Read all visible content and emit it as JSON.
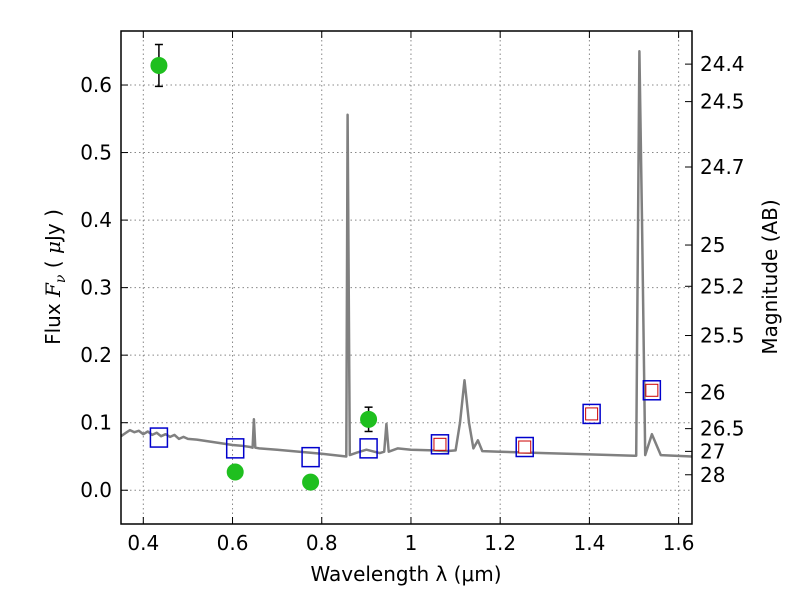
{
  "chart_data": {
    "type": "scatter",
    "xlabel": "Wavelength  λ (μm)",
    "ylabel": "Flux  F_ν  ( μJy )",
    "y2label": "Magnitude (AB)",
    "xlim": [
      0.35,
      1.63
    ],
    "ylim": [
      -0.05,
      0.68
    ],
    "grid": true,
    "x_ticks": [
      0.4,
      0.6,
      0.8,
      1.0,
      1.2,
      1.4,
      1.6
    ],
    "x_tick_labels": [
      "0.4",
      "0.6",
      "0.8",
      "1",
      "1.2",
      "1.4",
      "1.6"
    ],
    "y_ticks": [
      0.0,
      0.1,
      0.2,
      0.3,
      0.4,
      0.5,
      0.6
    ],
    "y_tick_labels": [
      "0.0",
      "0.1",
      "0.2",
      "0.3",
      "0.4",
      "0.5",
      "0.6"
    ],
    "mag_ticks": [
      "24.4",
      "24.5",
      "24.7",
      "25",
      "25.2",
      "25.5",
      "26",
      "26.5",
      "27",
      "28"
    ],
    "colors": {
      "model": "#808080",
      "observed": "#1fbf1f",
      "model_phot": "#0000cc",
      "filter_box": "#cc0000",
      "errorbar": "#000000",
      "grid": "#888888"
    },
    "series": [
      {
        "kind": "line",
        "points": [
          [
            0.35,
            0.08
          ],
          [
            0.37,
            0.089
          ],
          [
            0.38,
            0.086
          ],
          [
            0.39,
            0.088
          ],
          [
            0.4,
            0.083
          ],
          [
            0.41,
            0.087
          ],
          [
            0.42,
            0.082
          ],
          [
            0.43,
            0.085
          ],
          [
            0.44,
            0.08
          ],
          [
            0.45,
            0.083
          ],
          [
            0.46,
            0.079
          ],
          [
            0.47,
            0.082
          ],
          [
            0.48,
            0.076
          ],
          [
            0.49,
            0.079
          ],
          [
            0.5,
            0.076
          ],
          [
            0.52,
            0.075
          ],
          [
            0.55,
            0.072
          ],
          [
            0.58,
            0.069
          ],
          [
            0.6,
            0.067
          ],
          [
            0.62,
            0.066
          ],
          [
            0.64,
            0.064
          ],
          [
            0.645,
            0.063
          ],
          [
            0.648,
            0.105
          ],
          [
            0.651,
            0.063
          ],
          [
            0.66,
            0.062
          ],
          [
            0.7,
            0.06
          ],
          [
            0.75,
            0.057
          ],
          [
            0.8,
            0.054
          ],
          [
            0.84,
            0.051
          ],
          [
            0.855,
            0.05
          ],
          [
            0.858,
            0.556
          ],
          [
            0.863,
            0.052
          ],
          [
            0.88,
            0.056
          ],
          [
            0.9,
            0.06
          ],
          [
            0.93,
            0.055
          ],
          [
            0.94,
            0.057
          ],
          [
            0.945,
            0.098
          ],
          [
            0.95,
            0.057
          ],
          [
            0.97,
            0.062
          ],
          [
            1.0,
            0.06
          ],
          [
            1.05,
            0.059
          ],
          [
            1.08,
            0.058
          ],
          [
            1.1,
            0.059
          ],
          [
            1.11,
            0.1
          ],
          [
            1.12,
            0.163
          ],
          [
            1.13,
            0.1
          ],
          [
            1.14,
            0.062
          ],
          [
            1.15,
            0.074
          ],
          [
            1.16,
            0.058
          ],
          [
            1.2,
            0.057
          ],
          [
            1.3,
            0.055
          ],
          [
            1.4,
            0.053
          ],
          [
            1.5,
            0.051
          ],
          [
            1.505,
            0.051
          ],
          [
            1.512,
            0.65
          ],
          [
            1.518,
            0.4
          ],
          [
            1.525,
            0.052
          ],
          [
            1.54,
            0.083
          ],
          [
            1.56,
            0.052
          ],
          [
            1.63,
            0.05
          ]
        ]
      },
      {
        "kind": "observed",
        "points": [
          {
            "x": 0.435,
            "y": 0.629,
            "err": 0.031
          },
          {
            "x": 0.606,
            "y": 0.027,
            "err": 0.01
          },
          {
            "x": 0.775,
            "y": 0.012,
            "err": 0.01
          },
          {
            "x": 0.905,
            "y": 0.105,
            "err": 0.018
          }
        ]
      },
      {
        "kind": "model_photometry",
        "points": [
          {
            "x": 0.435,
            "y": 0.078
          },
          {
            "x": 0.606,
            "y": 0.062
          },
          {
            "x": 0.775,
            "y": 0.049
          },
          {
            "x": 0.905,
            "y": 0.062
          },
          {
            "x": 1.065,
            "y": 0.068
          },
          {
            "x": 1.255,
            "y": 0.064
          },
          {
            "x": 1.405,
            "y": 0.113
          },
          {
            "x": 1.54,
            "y": 0.148
          }
        ]
      },
      {
        "kind": "filter_boxes",
        "points": [
          {
            "x": 1.065,
            "y": 0.068
          },
          {
            "x": 1.255,
            "y": 0.064
          },
          {
            "x": 1.405,
            "y": 0.113
          },
          {
            "x": 1.54,
            "y": 0.148
          }
        ]
      }
    ]
  }
}
